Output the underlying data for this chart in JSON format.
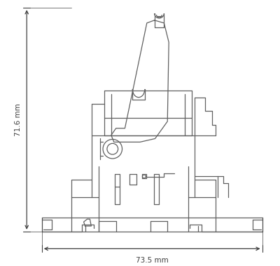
{
  "bg_color": "#ffffff",
  "line_color": "#606060",
  "dim_color": "#404040",
  "width_dim": "73.5 mm",
  "height_dim": "71.6 mm",
  "figsize": [
    4.0,
    3.79
  ],
  "dpi": 100,
  "lw": 0.9
}
